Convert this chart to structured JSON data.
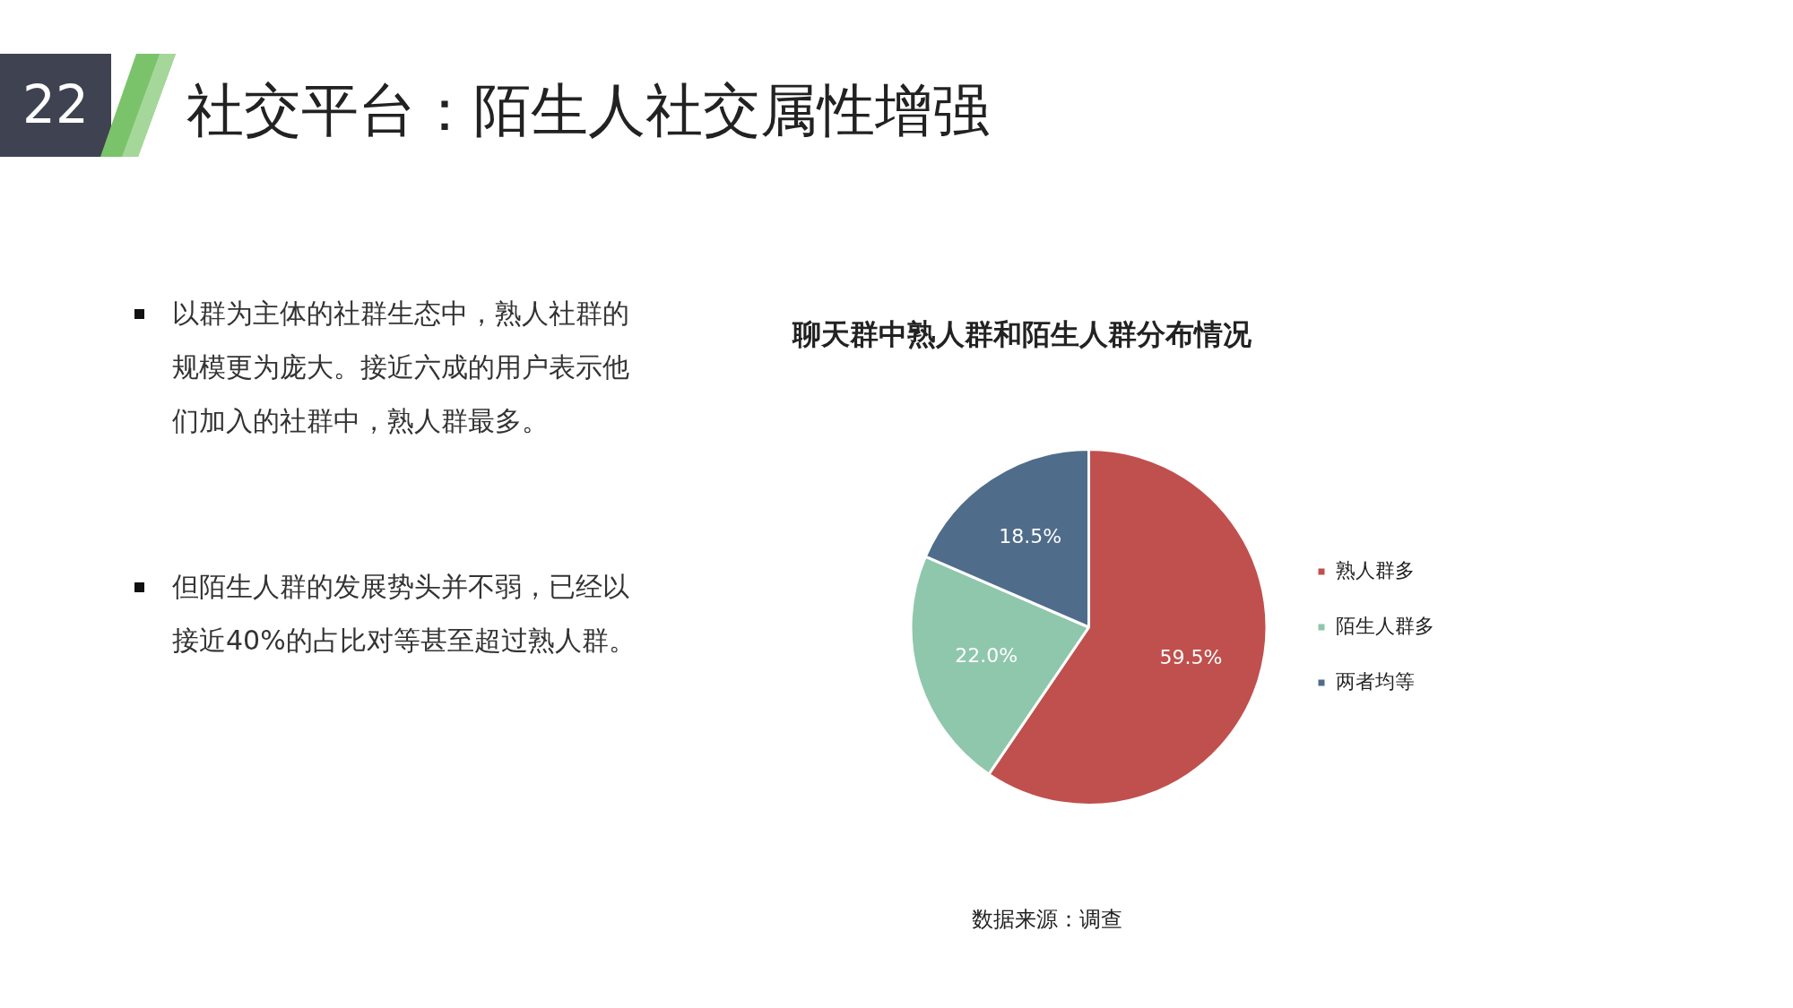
{
  "chart_data": {
    "type": "pie",
    "title": "社交平台：陌生人社交属性增强",
    "subtitle": "聊天群中熟人群和陌生人群分布情况",
    "categories": [
      "熟人群多",
      "陌生人群多",
      "两者均等"
    ],
    "values": [
      59.5,
      22.0,
      18.5
    ],
    "value_labels": [
      "59.5%",
      "22.0%",
      "18.5%"
    ],
    "colors": [
      "#c0504d",
      "#8fc7ad",
      "#4f6d8a"
    ],
    "legend": "right",
    "annotations": [
      "22",
      "以群为主体的社群生态中，熟人社群的规模更为庞大。接近六成的用户表示他们加入的社群中，熟人群最多。",
      "但陌生人群的发展势头并不弱，已经以接近40%的占比对等甚至超过熟人群。",
      "数据来源：调查"
    ]
  }
}
